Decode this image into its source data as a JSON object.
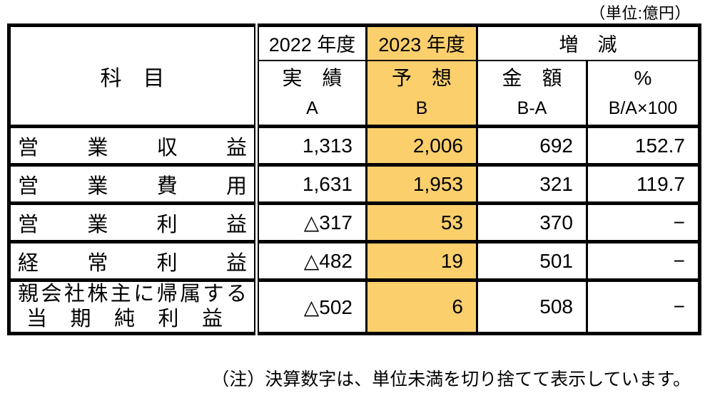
{
  "unit_note": "（単位:億円）",
  "footer_note": "（注）決算数字は、単位未満を切り捨てて表示しています。",
  "colors": {
    "highlight": "#FACF6C",
    "border": "#000000"
  },
  "header": {
    "item_label": "科　目",
    "col_2022": {
      "year": "2022 年度",
      "kind": "実　績",
      "code": "A"
    },
    "col_2023": {
      "year": "2023 年度",
      "kind": "予　想",
      "code": "B"
    },
    "col_change": {
      "title": "増　減",
      "amount": {
        "kind": "金　額",
        "code": "B-A"
      },
      "percent": {
        "kind": "%",
        "code": "B/A×100"
      }
    }
  },
  "rows": [
    {
      "label": "営業収益",
      "actual": "1,313",
      "forecast": "2,006",
      "change": "692",
      "percent": "152.7"
    },
    {
      "label": "営業費用",
      "actual": "1,631",
      "forecast": "1,953",
      "change": "321",
      "percent": "119.7"
    },
    {
      "label": "営業利益",
      "actual": "△317",
      "forecast": "53",
      "change": "370",
      "percent": "−"
    },
    {
      "label": "経常利益",
      "actual": "△482",
      "forecast": "19",
      "change": "501",
      "percent": "−"
    },
    {
      "label_line1": "親会社株主に帰属する",
      "label_line2": "当期純利益",
      "actual": "△502",
      "forecast": "6",
      "change": "508",
      "percent": "−"
    }
  ]
}
